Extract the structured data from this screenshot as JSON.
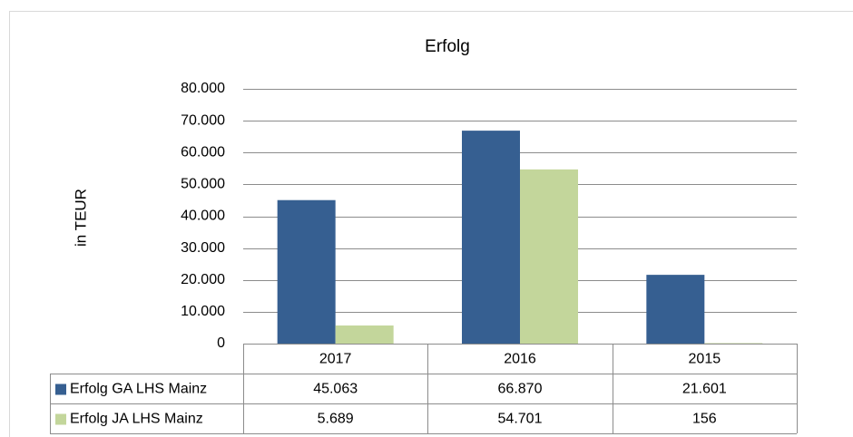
{
  "chart_data": {
    "type": "bar",
    "title": "Erfolg",
    "y_label": "in TEUR",
    "categories": [
      "2017",
      "2016",
      "2015"
    ],
    "series": [
      {
        "name": "Erfolg GA LHS Mainz",
        "color": "#365f91",
        "values": [
          45063,
          66870,
          21601
        ],
        "value_labels": [
          "45.063",
          "66.870",
          "21.601"
        ]
      },
      {
        "name": "Erfolg JA LHS Mainz",
        "color": "#c3d69b",
        "values": [
          5689,
          54701,
          156
        ],
        "value_labels": [
          "5.689",
          "54.701",
          "156"
        ]
      }
    ],
    "ylim": [
      0,
      80000
    ],
    "yticks": [
      0,
      {
        "value": 10000,
        "label": "10.000"
      },
      {
        "value": 20000,
        "label": "20.000"
      },
      {
        "value": 30000,
        "label": "30.000"
      },
      {
        "value": 40000,
        "label": "40.000"
      },
      {
        "value": 50000,
        "label": "50.000"
      },
      {
        "value": 60000,
        "label": "60.000"
      },
      {
        "value": 70000,
        "label": "70.000"
      },
      {
        "value": 80000,
        "label": "80.000"
      }
    ],
    "grid": true,
    "data_table": true
  }
}
